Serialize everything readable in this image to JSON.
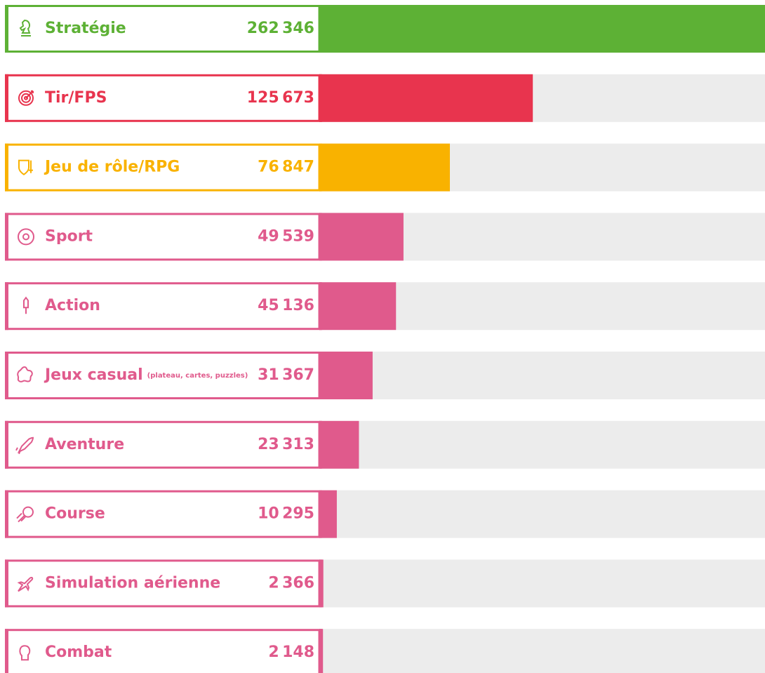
{
  "chart_data": {
    "type": "bar",
    "orientation": "horizontal",
    "categories": [
      "Stratégie",
      "Tir/FPS",
      "Jeu de rôle/RPG",
      "Sport",
      "Action",
      "Jeux casual",
      "Aventure",
      "Course",
      "Simulation aérienne",
      "Combat"
    ],
    "category_notes": [
      null,
      null,
      null,
      null,
      null,
      "(plateau, cartes, puzzles)",
      null,
      null,
      null,
      null
    ],
    "values": [
      262346,
      125673,
      76847,
      49539,
      45136,
      31367,
      23313,
      10295,
      2366,
      2148
    ],
    "value_labels": [
      "262 346",
      "125 673",
      "76 847",
      "49 539",
      "45 136",
      "31 367",
      "23 313",
      "10 295",
      "2 366",
      "2 148"
    ],
    "colors": [
      "#5db135",
      "#e8344e",
      "#f9b200",
      "#e05a8c",
      "#e05a8c",
      "#e05a8c",
      "#e05a8c",
      "#e05a8c",
      "#e05a8c",
      "#e05a8c"
    ],
    "track_color": "#ececec"
  }
}
